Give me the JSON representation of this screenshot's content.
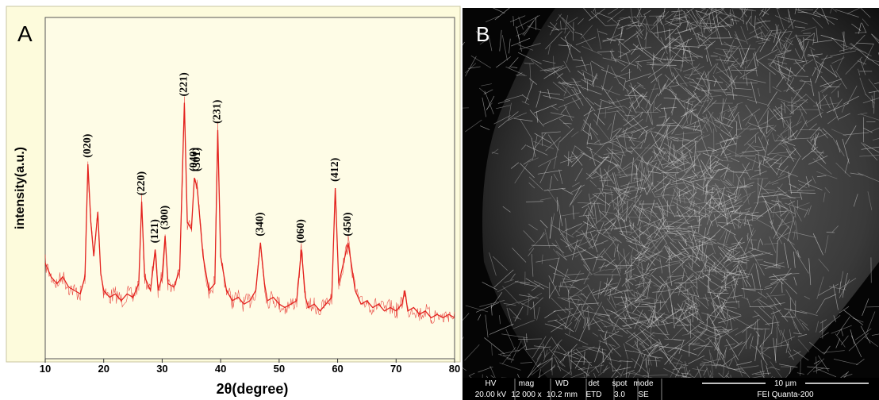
{
  "chart_data": {
    "type": "line",
    "panel_label": "A",
    "x_label": "2θ(degree)",
    "y_label": "intensity(a.u.)",
    "color": "#e3211d",
    "xlim": [
      10,
      80
    ],
    "xticks": [
      10,
      20,
      30,
      40,
      50,
      60,
      70,
      80
    ],
    "ylim": [
      0,
      100
    ],
    "x": [
      10,
      11,
      12,
      13,
      14,
      15,
      16,
      16.8,
      17.3,
      17.8,
      18.3,
      19,
      19.5,
      20,
      21,
      22,
      23,
      24,
      25,
      26,
      26.5,
      27,
      28,
      28.8,
      29.3,
      30,
      30.5,
      31,
      32,
      33,
      33.8,
      34.3,
      35,
      35.5,
      36,
      36.5,
      37,
      38,
      39,
      39.5,
      40,
      41,
      42,
      43,
      44,
      45,
      46,
      46.8,
      47.5,
      48,
      49,
      50,
      51,
      52,
      53,
      53.8,
      54.5,
      55,
      56,
      57,
      58,
      59,
      59.6,
      60.2,
      61,
      61.8,
      62.5,
      63,
      64,
      65,
      66,
      67,
      68,
      69,
      70,
      71,
      71.5,
      72,
      73,
      74,
      75,
      76,
      77,
      78,
      79,
      80
    ],
    "values": [
      28,
      24,
      22,
      24,
      21,
      20,
      19,
      24,
      57,
      40,
      30,
      43,
      25,
      20,
      18,
      19,
      17,
      19,
      18,
      22,
      46,
      24,
      20,
      32,
      20,
      24,
      36,
      22,
      21,
      26,
      75,
      40,
      38,
      53,
      50,
      40,
      30,
      20,
      22,
      67,
      30,
      20,
      17,
      18,
      16,
      17,
      20,
      34,
      22,
      17,
      18,
      16,
      15,
      16,
      17,
      32,
      18,
      15,
      16,
      14,
      16,
      18,
      50,
      22,
      28,
      34,
      26,
      20,
      16,
      17,
      15,
      16,
      14,
      15,
      14,
      16,
      20,
      14,
      15,
      13,
      14,
      12,
      13,
      12,
      13,
      12
    ],
    "annotations": [
      {
        "text": "(020)",
        "x": 17.3
      },
      {
        "text": "(220)",
        "x": 26.5
      },
      {
        "text": "(121)",
        "x": 28.8
      },
      {
        "text": "(300)",
        "x": 30.5
      },
      {
        "text": "(221)",
        "x": 33.8
      },
      {
        "text": "(040)",
        "x": 35.5
      },
      {
        "text": "(301)",
        "x": 36
      },
      {
        "text": "(231)",
        "x": 39.5
      },
      {
        "text": "(340)",
        "x": 46.8
      },
      {
        "text": "(060)",
        "x": 53.8
      },
      {
        "text": "(412)",
        "x": 59.6
      },
      {
        "text": "(450)",
        "x": 61.8
      }
    ]
  },
  "image_panel": {
    "panel_label": "B",
    "info_headers": [
      "HV",
      "mag",
      "WD",
      "det",
      "spot",
      "mode"
    ],
    "info_values": [
      "20.00 kV",
      "12 000 x",
      "10.2 mm",
      "ETD",
      "3.0",
      "SE"
    ],
    "scale_bar": "10 µm",
    "instrument": "FEI  Quanta-200"
  }
}
